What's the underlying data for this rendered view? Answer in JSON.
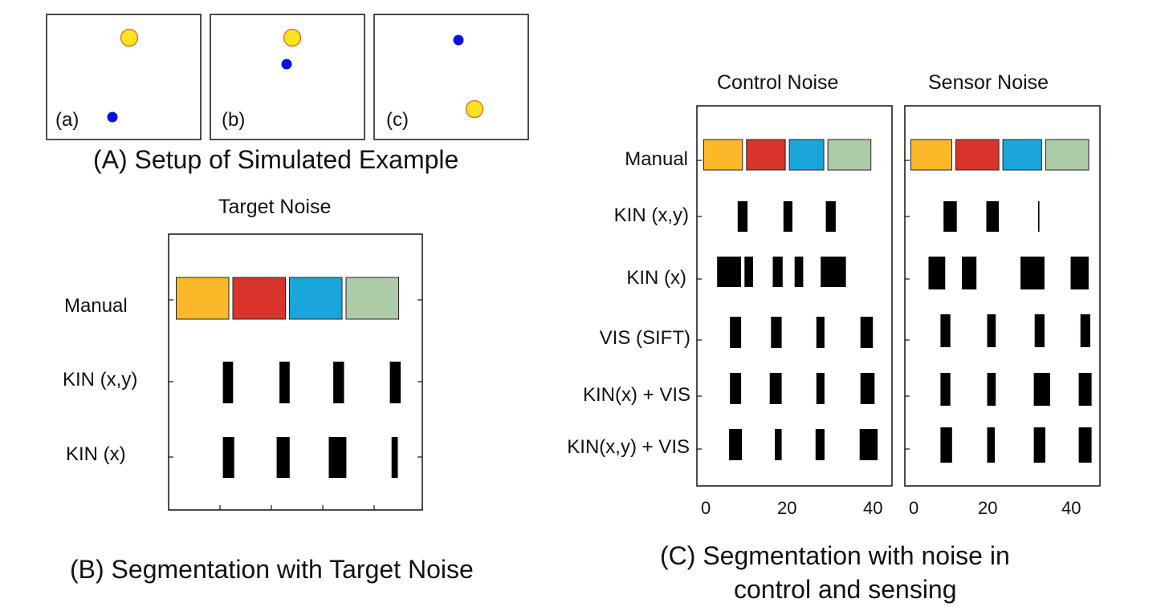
{
  "colors": {
    "orange": "#FBB829",
    "red": "#D9342B",
    "blue": "#1AA6DB",
    "green": "#ACCBA6",
    "marker_yellow": "#F7E61F",
    "marker_blue": "#0A12E0"
  },
  "panel_a": {
    "caption": "(A) Setup of Simulated Example",
    "frames": [
      {
        "label": "(a)"
      },
      {
        "label": "(b)"
      },
      {
        "label": "(c)"
      }
    ]
  },
  "panel_b": {
    "caption": "(B) Segmentation with Target Noise",
    "title": "Target Noise",
    "rows": [
      "Manual",
      "KIN (x,y)",
      "KIN (x)"
    ]
  },
  "panel_c": {
    "caption_line1": "(C) Segmentation with noise in",
    "caption_line2": "control and sensing",
    "titles": [
      "Control Noise",
      "Sensor Noise"
    ],
    "rows": [
      "Manual",
      "KIN (x,y)",
      "KIN (x)",
      "VIS (SIFT)",
      "KIN(x) + VIS",
      "KIN(x,y) + VIS"
    ],
    "xticks": [
      "0",
      "20",
      "40"
    ]
  },
  "chart_data": {
    "type": "bar",
    "xlim": [
      0,
      45
    ],
    "xticks": [
      0,
      20,
      40
    ],
    "panels": [
      {
        "title": "Target Noise",
        "series": [
          {
            "name": "Manual",
            "segments": [
              [
                0,
                10
              ],
              [
                10,
                20
              ],
              [
                20,
                30
              ],
              [
                30,
                40
              ]
            ]
          },
          {
            "name": "KIN (x,y)",
            "segments": [
              [
                8.6,
                10.4
              ],
              [
                18.6,
                20.4
              ],
              [
                28.1,
                30.0
              ],
              [
                38.1,
                40.0
              ]
            ]
          },
          {
            "name": "KIN (x)",
            "segments": [
              [
                8.6,
                10.6
              ],
              [
                18.1,
                20.4
              ],
              [
                27.3,
                30.4
              ],
              [
                38.4,
                39.5
              ]
            ]
          }
        ]
      },
      {
        "title": "Control Noise",
        "series": [
          {
            "name": "Manual",
            "segments": [
              [
                0,
                10
              ],
              [
                10,
                20
              ],
              [
                20,
                29
              ],
              [
                29,
                40
              ]
            ]
          },
          {
            "name": "KIN (x,y)",
            "segments": [
              [
                8.4,
                10.7
              ],
              [
                19.1,
                21.2
              ],
              [
                29.0,
                31.3
              ]
            ]
          },
          {
            "name": "KIN (x)",
            "segments": [
              [
                3.6,
                9.2
              ],
              [
                10.0,
                12.0
              ],
              [
                16.6,
                18.9
              ],
              [
                21.7,
                23.7
              ],
              [
                27.8,
                33.7
              ]
            ]
          },
          {
            "name": "VIS (SIFT)",
            "segments": [
              [
                6.6,
                9.2
              ],
              [
                16.2,
                18.7
              ],
              [
                26.8,
                28.7
              ],
              [
                37.1,
                40.0
              ]
            ]
          },
          {
            "name": "KIN(x) + VIS",
            "segments": [
              [
                6.6,
                9.2
              ],
              [
                15.9,
                18.7
              ],
              [
                26.8,
                28.7
              ],
              [
                37.1,
                40.4
              ]
            ]
          },
          {
            "name": "KIN(x,y) + VIS",
            "segments": [
              [
                6.4,
                9.4
              ],
              [
                17.1,
                18.7
              ],
              [
                26.6,
                28.7
              ],
              [
                36.9,
                41.1
              ]
            ]
          }
        ]
      },
      {
        "title": "Sensor Noise",
        "series": [
          {
            "name": "Manual",
            "segments": [
              [
                0,
                10.5
              ],
              [
                10.5,
                21.5
              ],
              [
                21.5,
                31.5
              ],
              [
                31.5,
                42.5
              ]
            ]
          },
          {
            "name": "KIN (x,y)",
            "segments": [
              [
                8.1,
                11.2
              ],
              [
                18.1,
                21.0
              ],
              [
                30.2,
                30.5
              ]
            ]
          },
          {
            "name": "KIN (x)",
            "segments": [
              [
                4.6,
                8.5
              ],
              [
                12.4,
                15.8
              ],
              [
                26.1,
                31.7
              ],
              [
                37.8,
                42.0
              ]
            ]
          },
          {
            "name": "VIS (SIFT)",
            "segments": [
              [
                7.4,
                9.7
              ],
              [
                18.3,
                20.3
              ],
              [
                29.4,
                31.7
              ],
              [
                40.1,
                42.4
              ]
            ]
          },
          {
            "name": "KIN(x) + VIS",
            "segments": [
              [
                7.4,
                9.7
              ],
              [
                18.3,
                20.3
              ],
              [
                29.2,
                33.0
              ],
              [
                39.7,
                42.7
              ]
            ]
          },
          {
            "name": "KIN(x,y) + VIS",
            "segments": [
              [
                7.4,
                10.1
              ],
              [
                18.3,
                20.1
              ],
              [
                29.2,
                31.9
              ],
              [
                39.7,
                42.7
              ]
            ]
          }
        ]
      }
    ]
  }
}
